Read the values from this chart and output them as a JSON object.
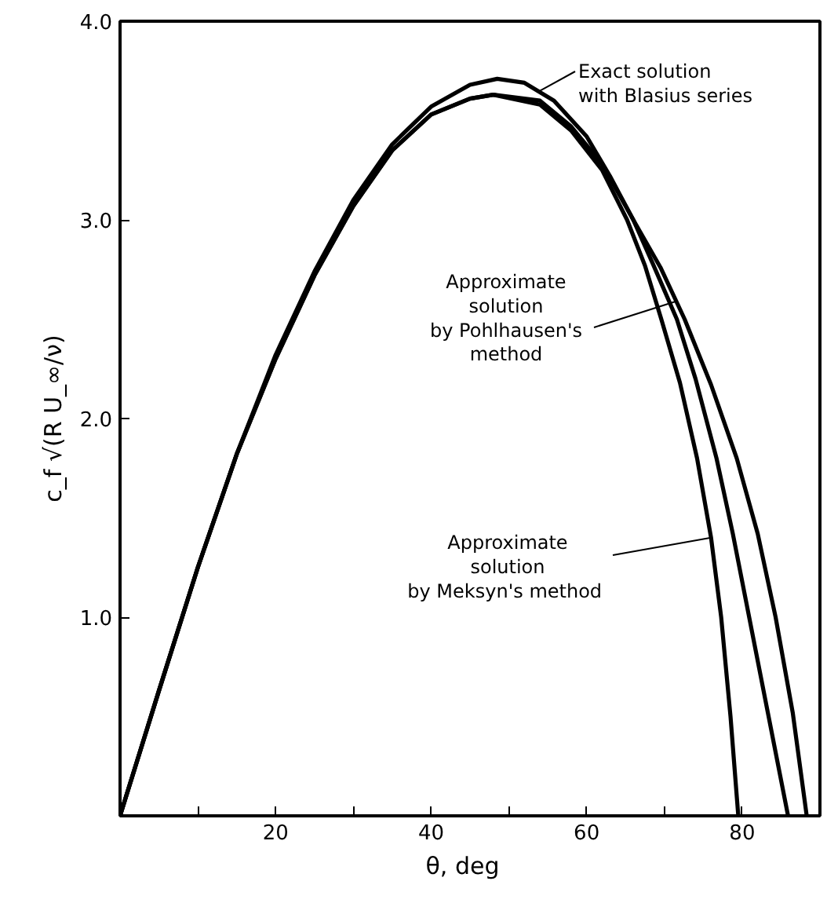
{
  "chart_data": {
    "type": "line",
    "xlabel": "θ,   deg",
    "ylabel": "c_f √(R U_∞/ν)",
    "xlim": [
      0,
      90
    ],
    "ylim": [
      0,
      4
    ],
    "xticks": [
      {
        "value": 10,
        "label": null
      },
      20,
      {
        "value": 30,
        "label": null
      },
      40,
      {
        "value": 50,
        "label": null
      },
      60,
      {
        "value": 70,
        "label": null
      },
      80
    ],
    "yticks": [
      {
        "value": 1,
        "label": "1.0"
      },
      {
        "value": 2,
        "label": "2.0"
      },
      {
        "value": 3,
        "label": "3.0"
      },
      {
        "value": 4,
        "label": "4.0"
      }
    ],
    "grid": false,
    "line_style": "solid",
    "marker": "none",
    "series": [
      {
        "color": "#000000",
        "x": [
          0,
          5,
          10,
          15,
          20,
          25,
          30,
          35,
          40,
          45,
          48.5,
          52,
          55.8,
          60,
          63,
          66,
          68.5,
          71.6,
          74,
          76.7,
          78.8,
          80.9,
          83.3,
          85.9
        ],
        "values": [
          0,
          0.63,
          1.25,
          1.82,
          2.32,
          2.74,
          3.1,
          3.38,
          3.57,
          3.68,
          3.71,
          3.69,
          3.6,
          3.42,
          3.22,
          3.0,
          2.78,
          2.5,
          2.2,
          1.8,
          1.42,
          1.0,
          0.52,
          0
        ]
      },
      {
        "color": "#000000",
        "x": [
          0,
          5,
          10,
          15,
          20,
          25,
          30,
          35,
          40,
          45,
          48,
          54,
          58,
          62,
          66,
          69.5,
          72.6,
          76,
          79.3,
          82,
          84.3,
          86.5,
          88.3
        ],
        "values": [
          0,
          0.63,
          1.25,
          1.82,
          2.3,
          2.72,
          3.07,
          3.35,
          3.53,
          3.61,
          3.63,
          3.6,
          3.47,
          3.28,
          3.0,
          2.76,
          2.5,
          2.17,
          1.8,
          1.42,
          1.0,
          0.52,
          0
        ]
      },
      {
        "color": "#000000",
        "x": [
          0,
          5,
          10,
          15,
          20,
          25,
          30,
          35,
          40,
          45,
          48,
          54,
          58,
          62,
          65.2,
          67.5,
          69.6,
          72,
          74.2,
          76,
          77.3,
          78.5,
          79.5
        ],
        "values": [
          0,
          0.63,
          1.25,
          1.82,
          2.3,
          2.72,
          3.07,
          3.35,
          3.53,
          3.61,
          3.63,
          3.58,
          3.45,
          3.25,
          3.0,
          2.77,
          2.5,
          2.18,
          1.8,
          1.4,
          1.0,
          0.5,
          0
        ]
      }
    ],
    "annotations": [
      {
        "text": "Exact  solution\nwith Blasius  series",
        "x": 54,
        "y": 3.65
      },
      {
        "text": "Approximate\nsolution\nby Pohlhausen's\nmethod",
        "x": 71.5,
        "y": 2.59
      },
      {
        "text": "Approximate\nsolution\nby Meksyn's  method",
        "x": 76,
        "y": 1.4
      }
    ]
  }
}
